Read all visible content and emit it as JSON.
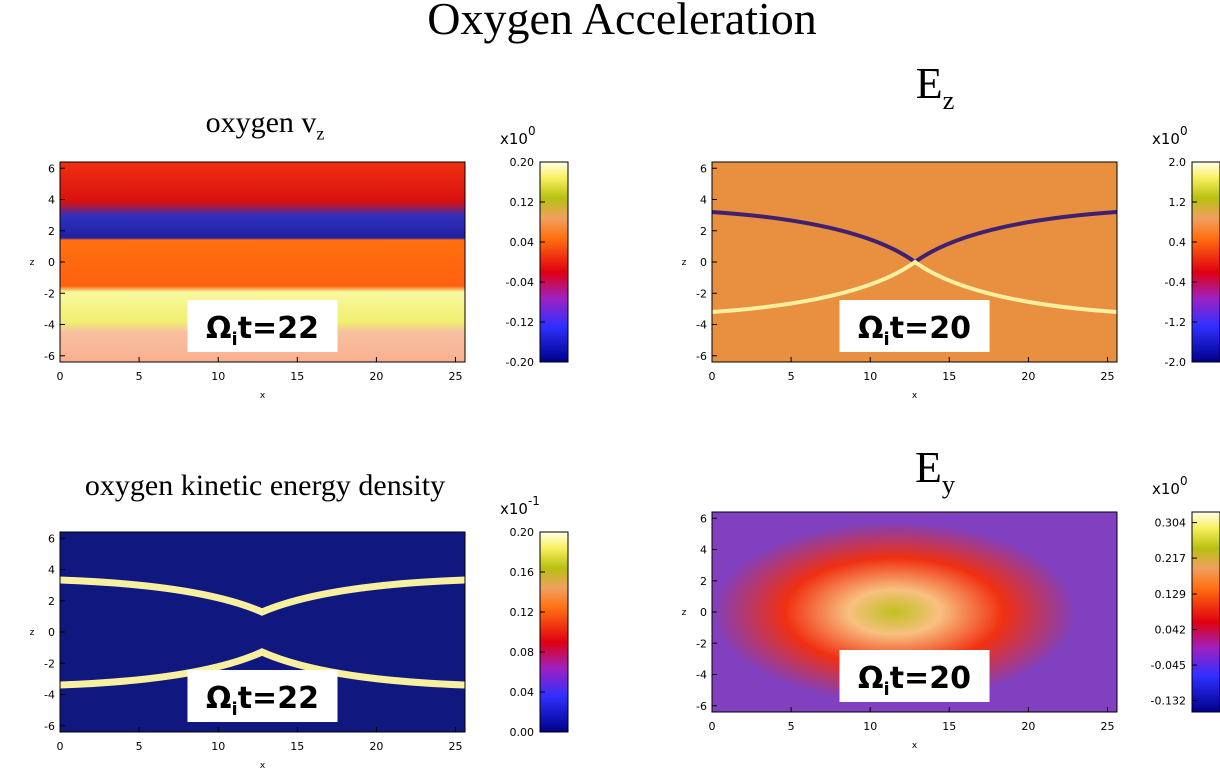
{
  "title": "Oxygen Acceleration",
  "chart_data": [
    {
      "type": "heatmap",
      "title": {
        "text": "oxygen v",
        "subscript": "z"
      },
      "xlabel": "x",
      "ylabel": "z",
      "xlim": [
        0,
        25.6
      ],
      "ylim": [
        -6.4,
        6.4
      ],
      "xticks": [
        0,
        5,
        10,
        15,
        20,
        25
      ],
      "yticks": [
        -6,
        -4,
        -2,
        0,
        2,
        4,
        6
      ],
      "annotation": {
        "symbol": "Ω",
        "subscript": "i",
        "text": "t=22"
      },
      "colorbar_scale": {
        "base": "x10",
        "exponent": "0"
      },
      "colorbar_lim": [
        -0.2,
        0.2
      ],
      "colorbar_ticks": [
        {
          "value": 0.2,
          "label": "0.20"
        },
        {
          "value": 0.12,
          "label": "0.12"
        },
        {
          "value": 0.04,
          "label": "0.04"
        },
        {
          "value": -0.04,
          "label": "-0.04"
        },
        {
          "value": -0.12,
          "label": "-0.12"
        },
        {
          "value": -0.2,
          "label": "-0.20"
        }
      ]
    },
    {
      "type": "heatmap",
      "title": {
        "text": "E",
        "subscript": "z"
      },
      "xlabel": "x",
      "ylabel": "z",
      "xlim": [
        0,
        25.6
      ],
      "ylim": [
        -6.4,
        6.4
      ],
      "xticks": [
        0,
        5,
        10,
        15,
        20,
        25
      ],
      "yticks": [
        -6,
        -4,
        -2,
        0,
        2,
        4,
        6
      ],
      "annotation": {
        "symbol": "Ω",
        "subscript": "i",
        "text": "t=20"
      },
      "colorbar_scale": {
        "base": "x10",
        "exponent": "0"
      },
      "colorbar_lim": [
        -2,
        2
      ],
      "colorbar_ticks": [
        {
          "value": 2,
          "label": "2.0"
        },
        {
          "value": 1.2,
          "label": "1.2"
        },
        {
          "value": 0.4,
          "label": "0.4"
        },
        {
          "value": -0.4,
          "label": "-0.4"
        },
        {
          "value": -1.2,
          "label": "-1.2"
        },
        {
          "value": -2,
          "label": "-2.0"
        }
      ]
    },
    {
      "type": "heatmap",
      "title": {
        "text": "oxygen kinetic energy density"
      },
      "xlabel": "x",
      "ylabel": "z",
      "xlim": [
        0,
        25.6
      ],
      "ylim": [
        -6.4,
        6.4
      ],
      "xticks": [
        0,
        5,
        10,
        15,
        20,
        25
      ],
      "yticks": [
        -6,
        -4,
        -2,
        0,
        2,
        4,
        6
      ],
      "annotation": {
        "symbol": "Ω",
        "subscript": "i",
        "text": "t=22"
      },
      "colorbar_scale": {
        "base": "x10",
        "exponent": "-1"
      },
      "colorbar_lim": [
        0,
        0.2
      ],
      "colorbar_ticks": [
        {
          "value": 0.2,
          "label": "0.20"
        },
        {
          "value": 0.16,
          "label": "0.16"
        },
        {
          "value": 0.12,
          "label": "0.12"
        },
        {
          "value": 0.08,
          "label": "0.08"
        },
        {
          "value": 0.04,
          "label": "0.04"
        },
        {
          "value": 0,
          "label": "0.00"
        }
      ]
    },
    {
      "type": "heatmap",
      "title": {
        "text": "E",
        "subscript": "y"
      },
      "xlabel": "x",
      "ylabel": "z",
      "xlim": [
        0,
        25.6
      ],
      "ylim": [
        -6.4,
        6.4
      ],
      "xticks": [
        0,
        5,
        10,
        15,
        20,
        25
      ],
      "yticks": [
        -6,
        -4,
        -2,
        0,
        2,
        4,
        6
      ],
      "annotation": {
        "symbol": "Ω",
        "subscript": "i",
        "text": "t=20"
      },
      "colorbar_scale": {
        "base": "x10",
        "exponent": "0"
      },
      "colorbar_lim": [
        -0.16,
        0.33
      ],
      "colorbar_ticks": [
        {
          "value": 0.304,
          "label": "0.304"
        },
        {
          "value": 0.217,
          "label": "0.217"
        },
        {
          "value": 0.129,
          "label": "0.129"
        },
        {
          "value": 0.042,
          "label": "0.042"
        },
        {
          "value": -0.045,
          "label": "-0.045"
        },
        {
          "value": -0.132,
          "label": "-0.132"
        }
      ]
    }
  ]
}
